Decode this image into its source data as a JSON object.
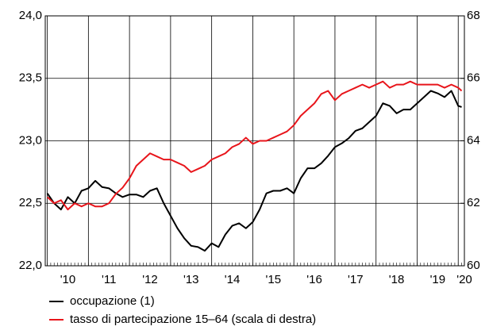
{
  "chart_data": {
    "type": "line",
    "x": [
      2010,
      2010.167,
      2010.333,
      2010.5,
      2010.667,
      2010.833,
      2011,
      2011.167,
      2011.333,
      2011.5,
      2011.667,
      2011.833,
      2012,
      2012.167,
      2012.333,
      2012.5,
      2012.667,
      2012.833,
      2013,
      2013.167,
      2013.333,
      2013.5,
      2013.667,
      2013.833,
      2014,
      2014.167,
      2014.333,
      2014.5,
      2014.667,
      2014.833,
      2015,
      2015.167,
      2015.333,
      2015.5,
      2015.667,
      2015.833,
      2016,
      2016.167,
      2016.333,
      2016.5,
      2016.667,
      2016.833,
      2017,
      2017.167,
      2017.333,
      2017.5,
      2017.667,
      2017.833,
      2018,
      2018.167,
      2018.333,
      2018.5,
      2018.667,
      2018.833,
      2019,
      2019.167,
      2019.333,
      2019.5,
      2019.667,
      2019.833,
      2020,
      2020.083
    ],
    "series": [
      {
        "name": "occupazione (1)",
        "color": "#000000",
        "axis": "y",
        "values": [
          22.58,
          22.5,
          22.45,
          22.55,
          22.5,
          22.6,
          22.62,
          22.68,
          22.63,
          22.62,
          22.58,
          22.55,
          22.57,
          22.57,
          22.55,
          22.6,
          22.62,
          22.5,
          22.4,
          22.3,
          22.22,
          22.16,
          22.15,
          22.12,
          22.18,
          22.15,
          22.25,
          22.32,
          22.34,
          22.3,
          22.35,
          22.45,
          22.58,
          22.6,
          22.6,
          22.62,
          22.58,
          22.7,
          22.78,
          22.78,
          22.82,
          22.88,
          22.95,
          22.98,
          23.02,
          23.08,
          23.1,
          23.15,
          23.2,
          23.3,
          23.28,
          23.22,
          23.25,
          23.25,
          23.3,
          23.35,
          23.4,
          23.38,
          23.35,
          23.4,
          23.28,
          23.27
        ]
      },
      {
        "name": "tasso di partecipazione 15–64 (scala di destra)",
        "color": "#e8151b",
        "axis": "y2",
        "values": [
          62.2,
          62,
          62.1,
          61.8,
          62,
          61.9,
          62,
          61.9,
          61.9,
          62,
          62.3,
          62.5,
          62.8,
          63.2,
          63.4,
          63.6,
          63.5,
          63.4,
          63.4,
          63.3,
          63.2,
          63,
          63.1,
          63.2,
          63.4,
          63.5,
          63.6,
          63.8,
          63.9,
          64.1,
          63.9,
          64,
          64,
          64.1,
          64.2,
          64.3,
          64.5,
          64.8,
          65,
          65.2,
          65.5,
          65.6,
          65.3,
          65.5,
          65.6,
          65.7,
          65.8,
          65.7,
          65.8,
          65.9,
          65.7,
          65.8,
          65.8,
          65.9,
          65.8,
          65.8,
          65.8,
          65.8,
          65.7,
          65.8,
          65.7,
          65.6
        ]
      }
    ],
    "xlim": [
      2009.95,
      2020.15
    ],
    "xticks": [
      {
        "value": 2010,
        "label": "'10"
      },
      {
        "value": 2011,
        "label": "'11"
      },
      {
        "value": 2012,
        "label": "'12"
      },
      {
        "value": 2013,
        "label": "'13"
      },
      {
        "value": 2014,
        "label": "'14"
      },
      {
        "value": 2015,
        "label": "'15"
      },
      {
        "value": 2016,
        "label": "'16"
      },
      {
        "value": 2017,
        "label": "'17"
      },
      {
        "value": 2018,
        "label": "'18"
      },
      {
        "value": 2019,
        "label": "'19"
      },
      {
        "value": 2020,
        "label": "'20"
      }
    ],
    "ylim": [
      22,
      24
    ],
    "yticks": [
      {
        "value": 22,
        "label": "22,0"
      },
      {
        "value": 22.5,
        "label": "22,5"
      },
      {
        "value": 23,
        "label": "23,0"
      },
      {
        "value": 23.5,
        "label": "23,5"
      },
      {
        "value": 24,
        "label": "24,0"
      }
    ],
    "y2lim": [
      60,
      68
    ],
    "y2ticks": [
      60,
      62,
      64,
      66,
      68
    ],
    "grid": true
  }
}
